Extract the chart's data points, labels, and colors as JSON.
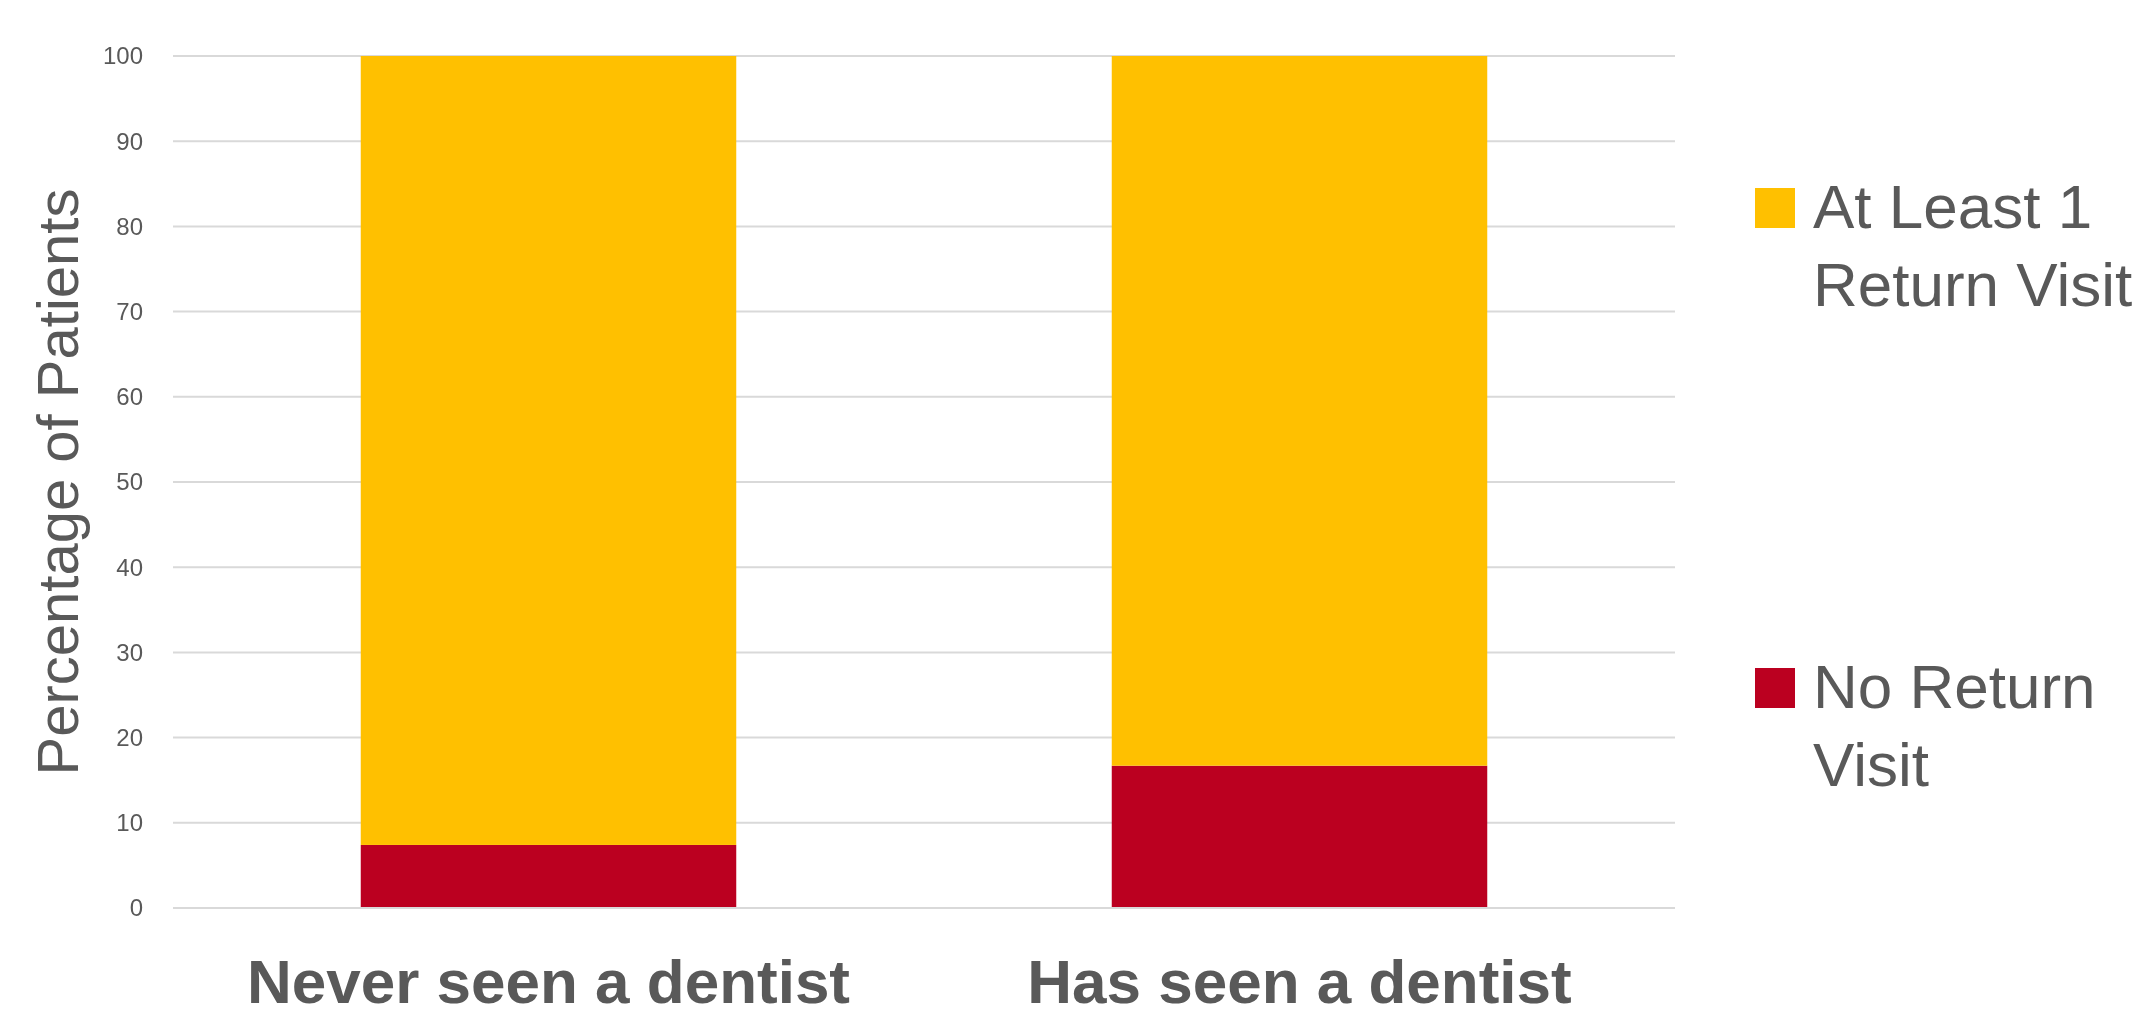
{
  "chart_data": {
    "type": "bar",
    "stacked": true,
    "ylabel": "Percentage of Patients",
    "categories": [
      "Never seen a dentist",
      "Has seen a dentist"
    ],
    "series": [
      {
        "name": "No Return Visit",
        "color": "#bb0020",
        "values": [
          7.4,
          16.7
        ]
      },
      {
        "name": "At Least 1 Return Visit",
        "color": "#ffc000",
        "values": [
          92.6,
          83.3
        ]
      }
    ],
    "ylim": [
      0,
      100
    ],
    "yticks": [
      0,
      10,
      20,
      30,
      40,
      50,
      60,
      70,
      80,
      90,
      100
    ],
    "grid": "y",
    "legend": "right"
  }
}
